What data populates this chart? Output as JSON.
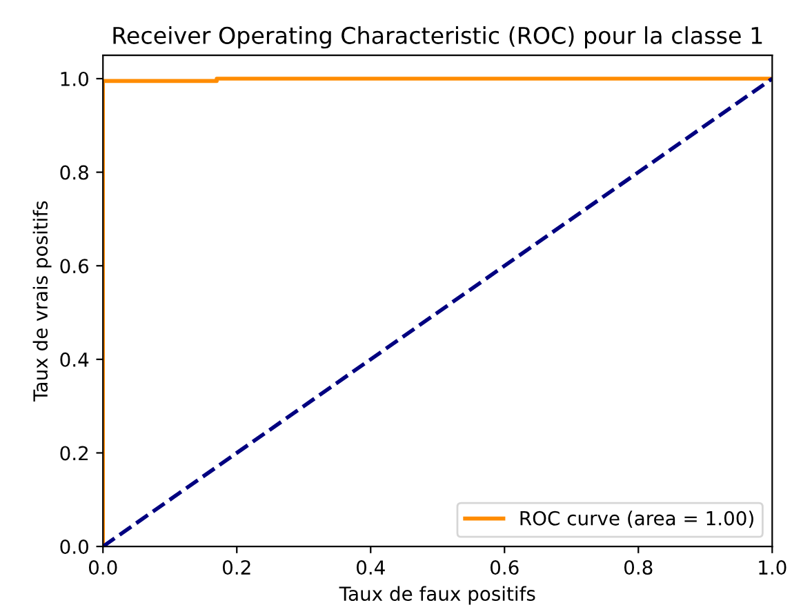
{
  "chart_data": {
    "type": "line",
    "title": "Receiver Operating Characteristic (ROC) pour la classe 1",
    "xlabel": "Taux de faux positifs",
    "ylabel": "Taux de vrais positifs",
    "series": [
      {
        "name": "ROC curve (area = 1.00)",
        "color": "#ff8c00",
        "x": [
          0,
          0,
          0.17,
          0.17,
          1
        ],
        "values": [
          0,
          0.995,
          0.995,
          1,
          1
        ],
        "line_style": "solid"
      },
      {
        "color": "#000080",
        "x": [
          0,
          1
        ],
        "values": [
          0,
          1
        ],
        "line_style": "dashed"
      }
    ],
    "xlim": [
      0,
      1
    ],
    "ylim": [
      0,
      1.05
    ],
    "xticks": [
      {
        "value": 0,
        "label": "0.0"
      },
      0.2,
      0.4,
      0.6,
      0.8,
      {
        "value": 1,
        "label": "1.0"
      }
    ],
    "yticks": [
      {
        "value": 0,
        "label": "0.0"
      },
      0.2,
      0.4,
      0.6,
      0.8,
      {
        "value": 1,
        "label": "1.0"
      }
    ],
    "legend": "lower right",
    "grid": false,
    "marker": "none"
  }
}
